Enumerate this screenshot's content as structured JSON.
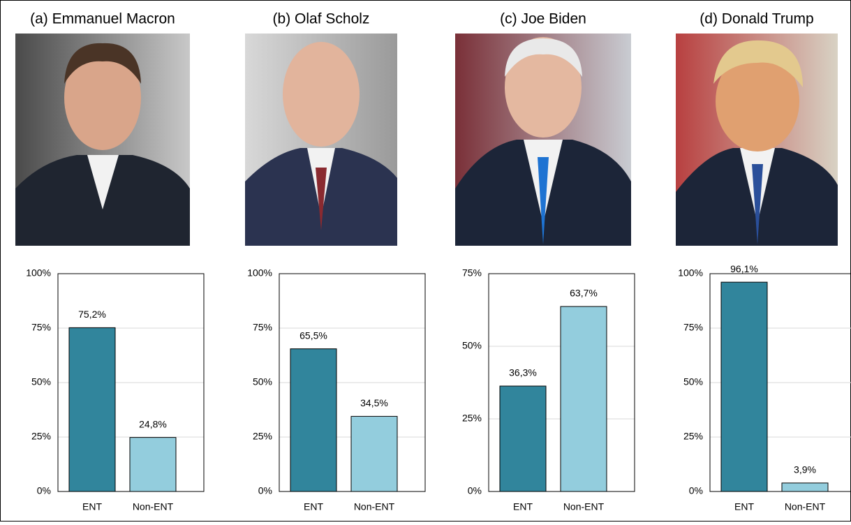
{
  "chart_data": [
    {
      "type": "bar",
      "title": "(a) Emmanuel Macron",
      "categories": [
        "ENT",
        "Non-ENT"
      ],
      "values": [
        75.2,
        24.8
      ],
      "value_labels": [
        "75,2%",
        "24,8%"
      ],
      "colors": [
        "#31859c",
        "#93cddd"
      ],
      "ylim": [
        0,
        100
      ],
      "yticks": [
        {
          "value": 0,
          "label": "0%"
        },
        {
          "value": 25,
          "label": "25%"
        },
        {
          "value": 50,
          "label": "50%"
        },
        {
          "value": 75,
          "label": "75%"
        },
        {
          "value": 100,
          "label": "100%"
        }
      ],
      "grid": true
    },
    {
      "type": "bar",
      "title": "(b) Olaf Scholz",
      "categories": [
        "ENT",
        "Non-ENT"
      ],
      "values": [
        65.5,
        34.5
      ],
      "value_labels": [
        "65,5%",
        "34,5%"
      ],
      "colors": [
        "#31859c",
        "#93cddd"
      ],
      "ylim": [
        0,
        100
      ],
      "yticks": [
        {
          "value": 0,
          "label": "0%"
        },
        {
          "value": 25,
          "label": "25%"
        },
        {
          "value": 50,
          "label": "50%"
        },
        {
          "value": 75,
          "label": "75%"
        },
        {
          "value": 100,
          "label": "100%"
        }
      ],
      "grid": true
    },
    {
      "type": "bar",
      "title": "(c) Joe Biden",
      "categories": [
        "ENT",
        "Non-ENT"
      ],
      "values": [
        36.3,
        63.7
      ],
      "value_labels": [
        "36,3%",
        "63,7%"
      ],
      "colors": [
        "#31859c",
        "#93cddd"
      ],
      "ylim": [
        0,
        75
      ],
      "yticks": [
        {
          "value": 0,
          "label": "0%"
        },
        {
          "value": 25,
          "label": "25%"
        },
        {
          "value": 50,
          "label": "50%"
        },
        {
          "value": 75,
          "label": "75%"
        }
      ],
      "grid": true
    },
    {
      "type": "bar",
      "title": "(d) Donald Trump",
      "categories": [
        "ENT",
        "Non-ENT"
      ],
      "values": [
        96.1,
        3.9
      ],
      "value_labels": [
        "96,1%",
        "3,9%"
      ],
      "colors": [
        "#31859c",
        "#93cddd"
      ],
      "ylim": [
        0,
        100
      ],
      "yticks": [
        {
          "value": 0,
          "label": "0%"
        },
        {
          "value": 25,
          "label": "25%"
        },
        {
          "value": 50,
          "label": "50%"
        },
        {
          "value": 75,
          "label": "75%"
        },
        {
          "value": 100,
          "label": "100%"
        }
      ],
      "grid": true
    }
  ]
}
